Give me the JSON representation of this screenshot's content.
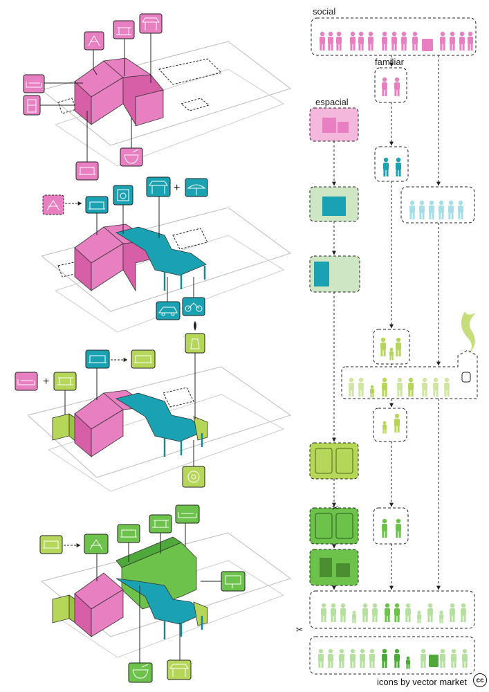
{
  "labels": {
    "social": "social",
    "familiar": "familiar",
    "espacial": "espacial"
  },
  "credit": "icons by vector market",
  "cc_mark": "cc",
  "colors": {
    "pink": "#e77fc0",
    "pink_dark": "#d75fa8",
    "teal": "#1aa2b2",
    "teal_dark": "#0f8a99",
    "lime": "#b6d65a",
    "lime_dark": "#9cc23e",
    "green": "#6cc24a",
    "green_dark": "#4fa83a",
    "light_blue": "#a6dde6",
    "pale_green": "#cfe6a2",
    "line": "#222222"
  }
}
